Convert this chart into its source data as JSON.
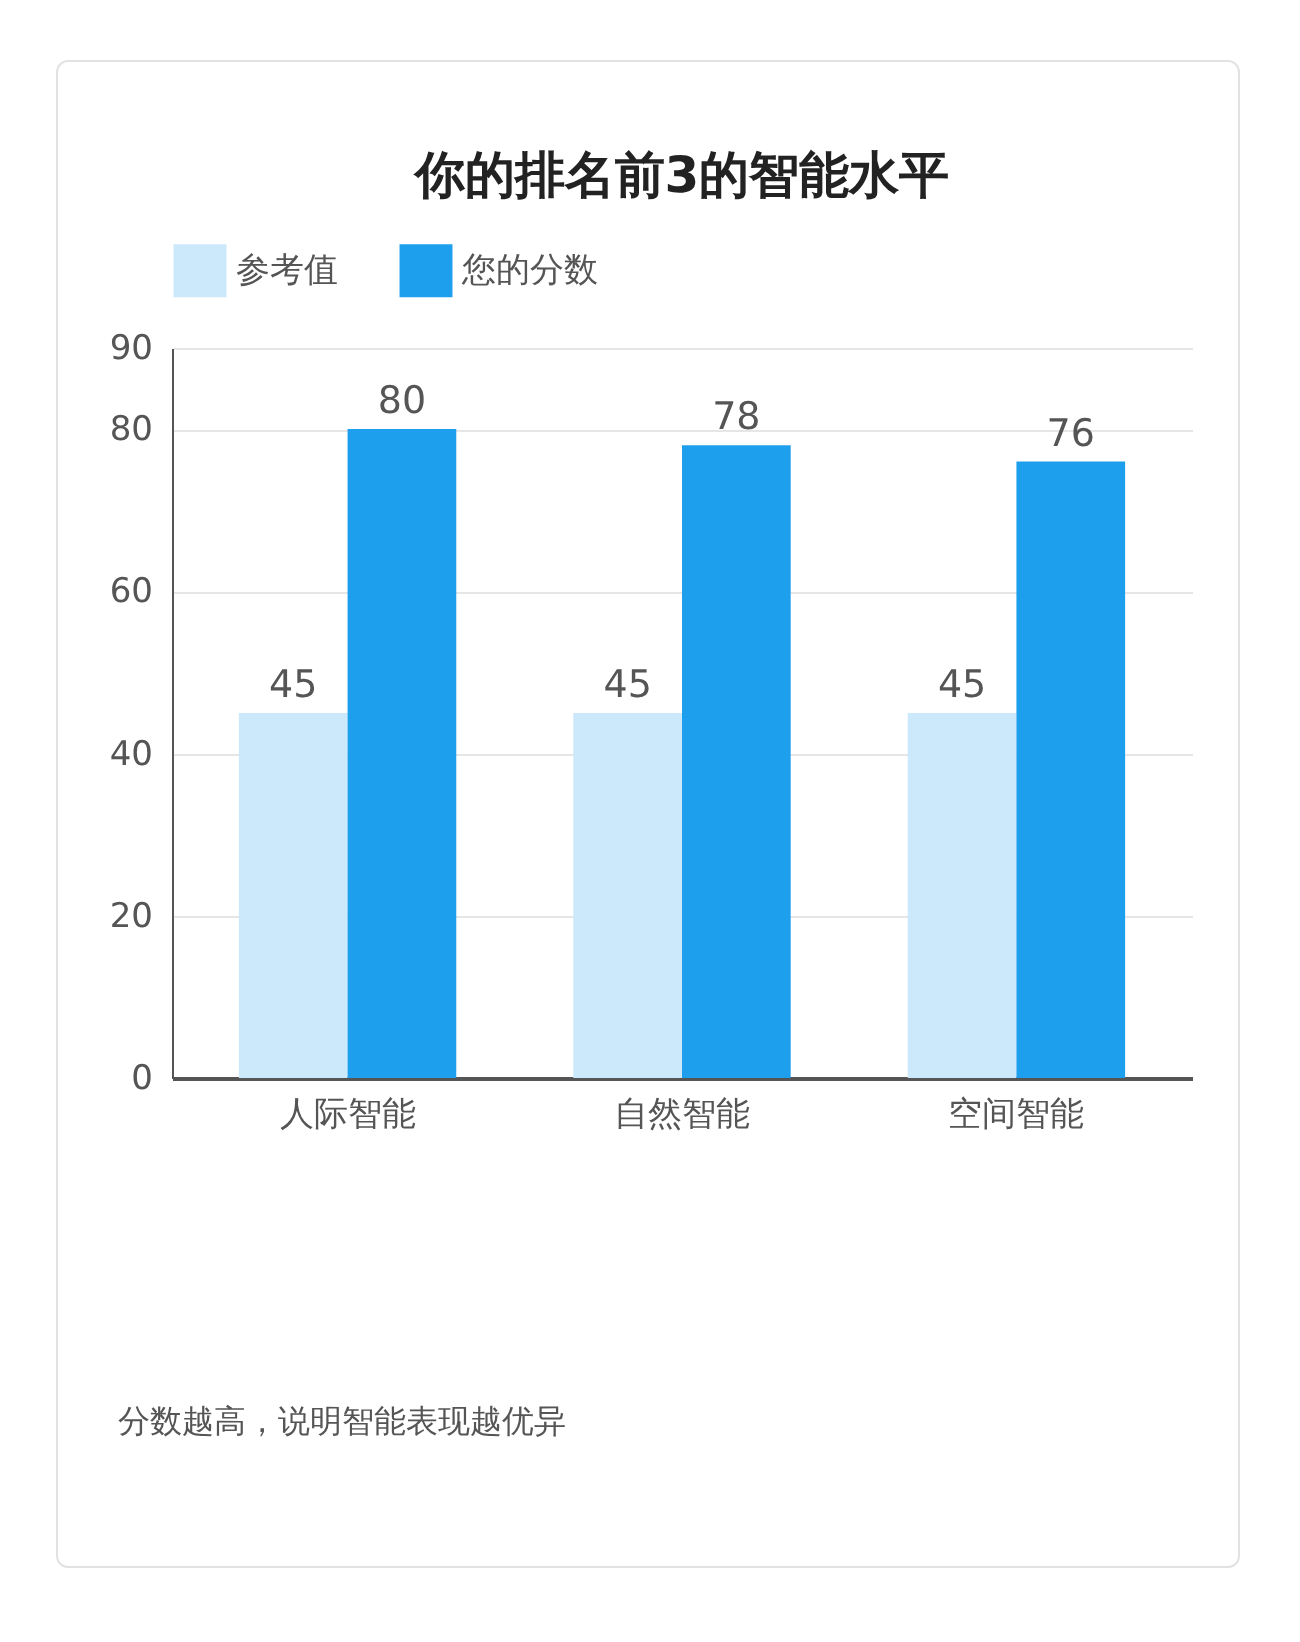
{
  "chart_data": {
    "type": "bar",
    "title": "你的排名前3的智能水平",
    "categories": [
      "人际智能",
      "自然智能",
      "空间智能"
    ],
    "series": [
      {
        "name": "参考值",
        "color": "#cce9fb",
        "values": [
          45,
          45,
          45
        ]
      },
      {
        "name": "您的分数",
        "color": "#1e9fee",
        "values": [
          80,
          78,
          76
        ]
      }
    ],
    "ylim": [
      0,
      90
    ],
    "yticks": [
      0,
      20,
      40,
      60,
      80,
      90
    ],
    "grid": "y",
    "legend": "top left",
    "data_labels": true,
    "annotations": [
      "分数越高，说明智能表现越优异"
    ]
  }
}
